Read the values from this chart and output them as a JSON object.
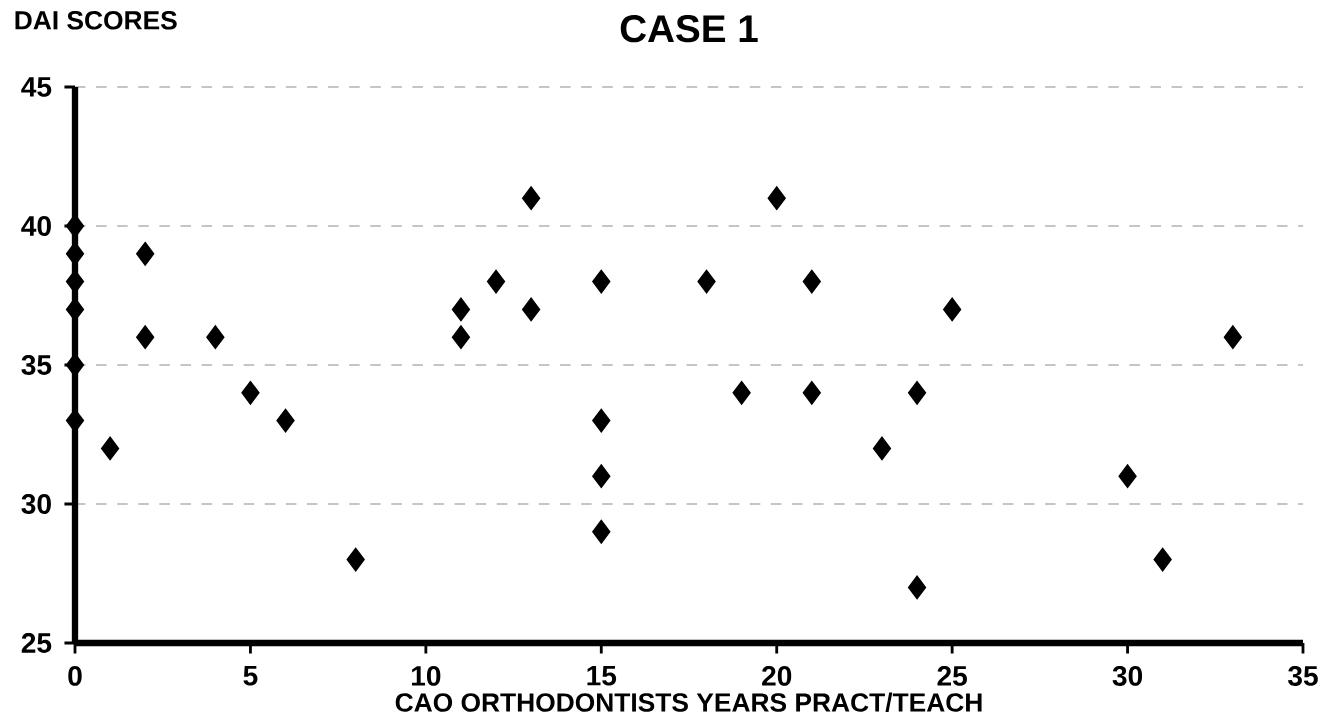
{
  "chart_data": {
    "type": "scatter",
    "title": "CASE 1",
    "xlabel": "CAO ORTHODONTISTS YEARS PRACT/TEACH",
    "ylabel": "DAI SCORES",
    "x": [
      0,
      0,
      0,
      0,
      0,
      0,
      1,
      2,
      2,
      4,
      5,
      6,
      8,
      11,
      11,
      12,
      13,
      13,
      15,
      15,
      15,
      15,
      18,
      19,
      20,
      21,
      21,
      23,
      24,
      24,
      25,
      30,
      31,
      33
    ],
    "values": [
      40,
      39,
      38,
      37,
      35,
      33,
      32,
      39,
      36,
      36,
      34,
      33,
      28,
      37,
      36,
      38,
      41,
      37,
      38,
      33,
      31,
      29,
      38,
      34,
      41,
      38,
      34,
      32,
      34,
      27,
      37,
      31,
      28,
      36
    ],
    "color": "#000000",
    "marker": "diamond",
    "grid": "y",
    "xlim": [
      0,
      35
    ],
    "ylim": [
      25,
      45
    ],
    "xticks": [
      0,
      5,
      10,
      15,
      20,
      25,
      30,
      35
    ],
    "yticks": [
      25,
      30,
      35,
      40,
      45
    ]
  }
}
